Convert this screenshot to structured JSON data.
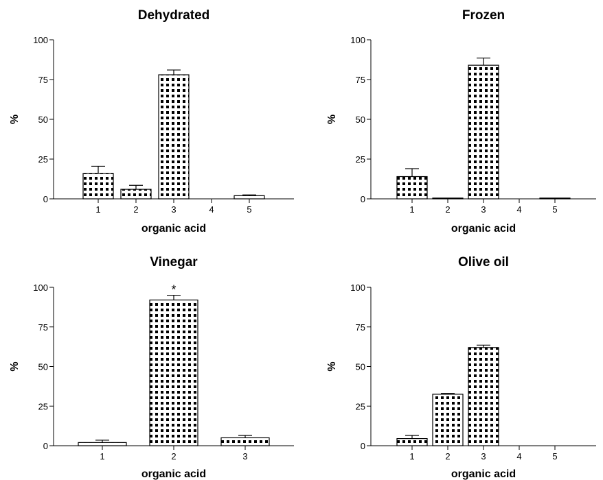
{
  "chart_data": [
    {
      "type": "bar",
      "title": "Dehydrated",
      "xlabel": "organic acid",
      "ylabel": "%",
      "ylim": [
        0,
        100
      ],
      "yticks": [
        0,
        25,
        50,
        75,
        100
      ],
      "categories": [
        "1",
        "2",
        "3",
        "4",
        "5"
      ],
      "values": [
        16,
        6,
        78,
        0,
        2
      ],
      "errors": [
        4.5,
        2.5,
        3,
        0,
        0.5
      ],
      "annotations": [
        "",
        "",
        "",
        "",
        ""
      ],
      "grid": false
    },
    {
      "type": "bar",
      "title": "Frozen",
      "xlabel": "organic acid",
      "ylabel": "%",
      "ylim": [
        0,
        100
      ],
      "yticks": [
        0,
        25,
        50,
        75,
        100
      ],
      "categories": [
        "1",
        "2",
        "3",
        "4",
        "5"
      ],
      "values": [
        14,
        0.5,
        84,
        0,
        0.5
      ],
      "errors": [
        5,
        0,
        4.5,
        0,
        0
      ],
      "annotations": [
        "",
        "",
        "",
        "",
        ""
      ],
      "grid": false
    },
    {
      "type": "bar",
      "title": "Vinegar",
      "xlabel": "organic acid",
      "ylabel": "%",
      "ylim": [
        0,
        100
      ],
      "yticks": [
        0,
        25,
        50,
        75,
        100
      ],
      "categories": [
        "1",
        "2",
        "3"
      ],
      "values": [
        2,
        92,
        5
      ],
      "errors": [
        1.5,
        3,
        1.5
      ],
      "annotations": [
        "",
        "*",
        ""
      ],
      "grid": false
    },
    {
      "type": "bar",
      "title": "Olive oil",
      "xlabel": "organic acid",
      "ylabel": "%",
      "ylim": [
        0,
        100
      ],
      "yticks": [
        0,
        25,
        50,
        75,
        100
      ],
      "categories": [
        "1",
        "2",
        "3",
        "4",
        "5"
      ],
      "values": [
        4.5,
        32.5,
        62,
        0,
        0
      ],
      "errors": [
        2,
        0.5,
        1.5,
        0,
        0
      ],
      "annotations": [
        "",
        "",
        "",
        "",
        ""
      ],
      "grid": false
    }
  ],
  "fill_pattern": "checkerboard-dots",
  "colors": {
    "ink": "#000000",
    "background": "#ffffff"
  }
}
